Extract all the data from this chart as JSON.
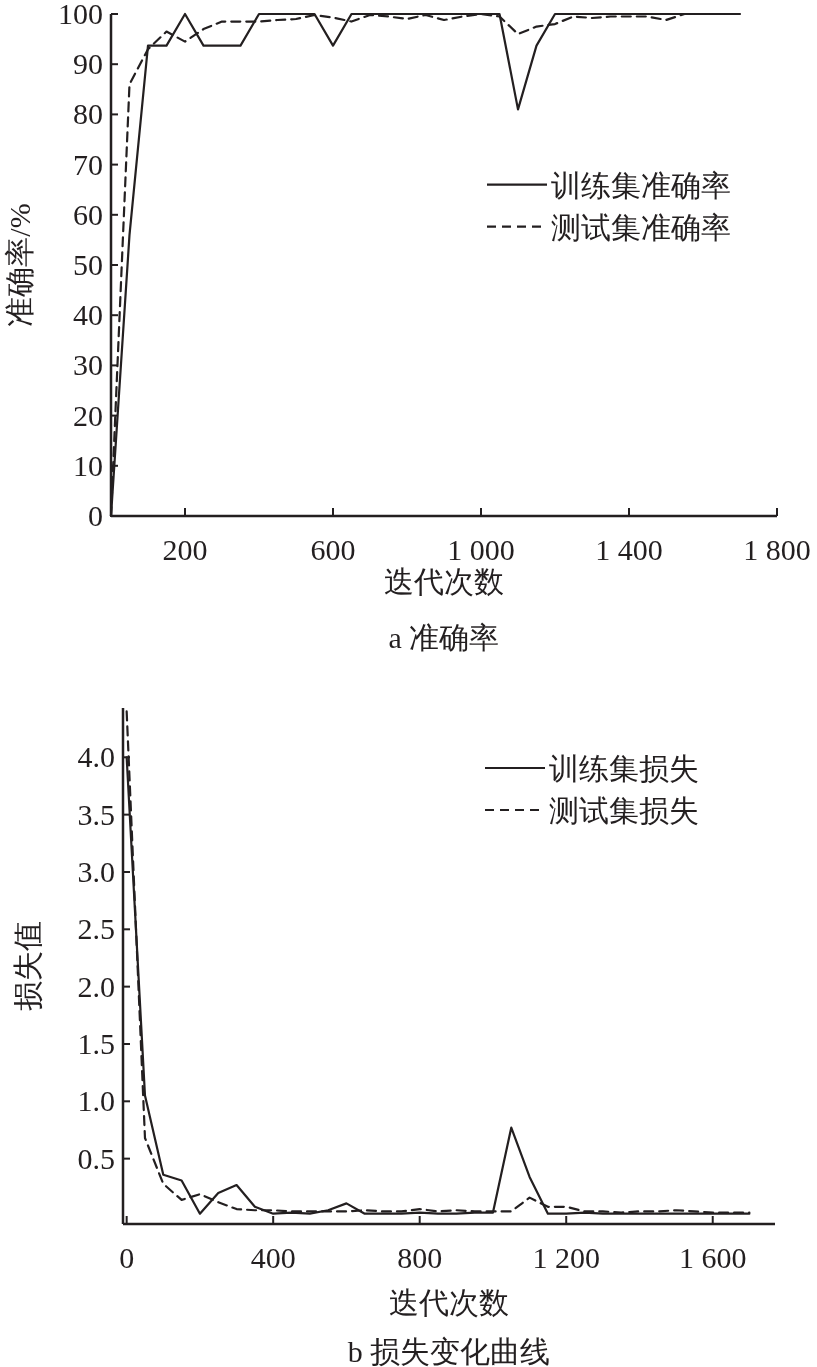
{
  "chart_data": [
    {
      "type": "line",
      "title": "a 准确率",
      "xlabel": "迭代次数",
      "ylabel": "准确率/%",
      "xlim": [
        0,
        1800
      ],
      "xticks": [
        200,
        600,
        {
          "value": 1000,
          "label": "1 000"
        },
        {
          "value": 1400,
          "label": "1 400"
        },
        {
          "value": 1800,
          "label": "1 800"
        }
      ],
      "ylim": [
        0,
        100
      ],
      "yticks": [
        0,
        10,
        20,
        30,
        40,
        50,
        60,
        70,
        80,
        90,
        100
      ],
      "grid": false,
      "legend": "right",
      "marker": "none",
      "x": [
        0,
        50,
        100,
        150,
        200,
        250,
        300,
        350,
        400,
        450,
        500,
        550,
        600,
        650,
        700,
        750,
        800,
        850,
        900,
        950,
        1000,
        1050,
        1100,
        1150,
        1200,
        1250,
        1300,
        1350,
        1400,
        1450,
        1500,
        1550,
        1600,
        1650,
        1700
      ],
      "series": [
        {
          "name": "训练集准确率",
          "color": "#231f20",
          "line_style": "solid",
          "values": [
            0,
            56,
            93.7,
            93.7,
            100,
            93.7,
            93.7,
            93.7,
            100,
            100,
            100,
            100,
            93.7,
            100,
            100,
            100,
            100,
            100,
            100,
            100,
            100,
            100,
            81,
            93.7,
            100,
            100,
            100,
            100,
            100,
            100,
            100,
            100,
            100,
            100,
            100
          ]
        },
        {
          "name": "测试集准确率",
          "color": "#231f20",
          "line_style": "dashed",
          "values": [
            0,
            86,
            93,
            96.5,
            94.5,
            97,
            98.5,
            98.5,
            98.5,
            98.8,
            99,
            99.8,
            99.3,
            98.5,
            99.8,
            99.5,
            99,
            99.8,
            98.8,
            99.5,
            100,
            99.5,
            96,
            97.5,
            98,
            99.5,
            99.2,
            99.5,
            99.5,
            99.5,
            98.8,
            100,
            100,
            100,
            100
          ]
        }
      ]
    },
    {
      "type": "line",
      "title": "b 损失变化曲线",
      "xlabel": "迭代次数",
      "ylabel": "损失值",
      "xlim": [
        -10,
        1770
      ],
      "xticks": [
        0,
        400,
        800,
        {
          "value": 1200,
          "label": "1 200"
        },
        {
          "value": 1600,
          "label": "1 600"
        }
      ],
      "ylim": [
        -0.07,
        4.43
      ],
      "yticks": [
        {
          "value": 0.5,
          "label": "0.5"
        },
        {
          "value": 1,
          "label": "1.0"
        },
        {
          "value": 1.5,
          "label": "1.5"
        },
        {
          "value": 2,
          "label": "2.0"
        },
        {
          "value": 2.5,
          "label": "2.5"
        },
        {
          "value": 3,
          "label": "3.0"
        },
        {
          "value": 3.5,
          "label": "3.5"
        },
        {
          "value": 4,
          "label": "4.0"
        }
      ],
      "grid": false,
      "legend": "top right",
      "marker": "none",
      "x": [
        0,
        50,
        100,
        150,
        200,
        250,
        300,
        350,
        400,
        450,
        500,
        550,
        600,
        650,
        700,
        750,
        800,
        850,
        900,
        950,
        1000,
        1050,
        1100,
        1150,
        1200,
        1250,
        1300,
        1350,
        1400,
        1450,
        1500,
        1550,
        1600,
        1650,
        1700
      ],
      "series": [
        {
          "name": "训练集损失",
          "color": "#231f20",
          "line_style": "solid",
          "values": [
            4.0,
            1.05,
            0.36,
            0.31,
            0.02,
            0.2,
            0.27,
            0.08,
            0.02,
            0.03,
            0.02,
            0.05,
            0.11,
            0.02,
            0.02,
            0.02,
            0.03,
            0.02,
            0.02,
            0.03,
            0.03,
            0.77,
            0.34,
            0.02,
            0.02,
            0.03,
            0.02,
            0.02,
            0.02,
            0.02,
            0.02,
            0.02,
            0.02,
            0.02,
            0.02
          ]
        },
        {
          "name": "测试集损失",
          "color": "#231f20",
          "line_style": "dashed",
          "values": [
            4.4,
            0.68,
            0.28,
            0.14,
            0.19,
            0.12,
            0.06,
            0.05,
            0.05,
            0.04,
            0.04,
            0.04,
            0.04,
            0.05,
            0.04,
            0.04,
            0.06,
            0.04,
            0.05,
            0.04,
            0.04,
            0.04,
            0.16,
            0.08,
            0.08,
            0.04,
            0.04,
            0.03,
            0.04,
            0.04,
            0.05,
            0.04,
            0.03,
            0.03,
            0.03
          ]
        }
      ]
    }
  ]
}
